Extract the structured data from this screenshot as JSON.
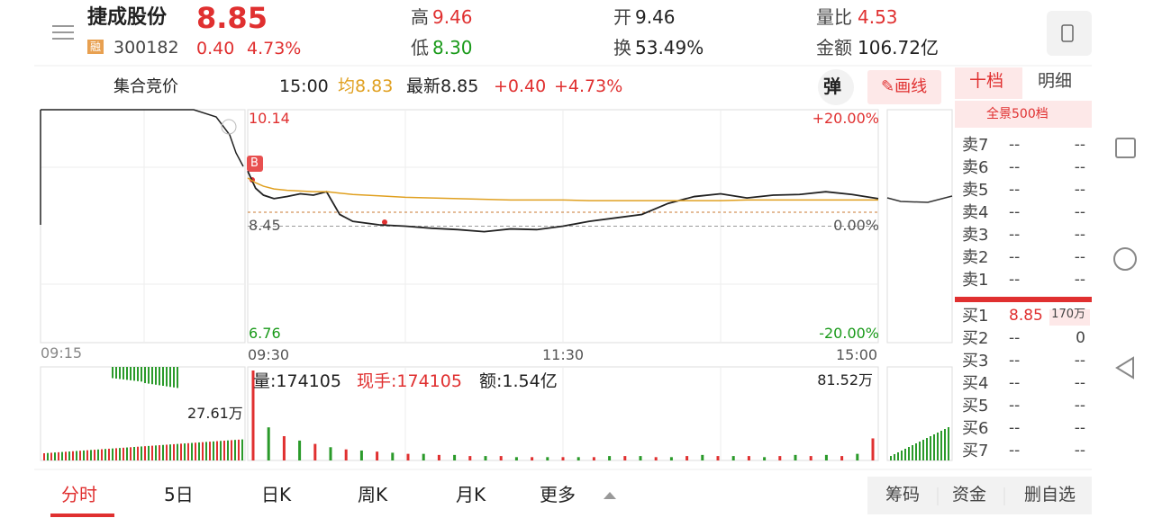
{
  "header": {
    "name": "捷成股份",
    "badge": "融",
    "code": "300182",
    "price": "8.85",
    "change": "0.40",
    "change_pct": "4.73%",
    "stats": [
      {
        "label": "高",
        "value": "9.46"
      },
      {
        "label": "低",
        "value": "8.30"
      },
      {
        "label": "开",
        "value": "9.46"
      },
      {
        "label": "换",
        "value": "53.49%"
      },
      {
        "label": "量比",
        "value": "4.53"
      },
      {
        "label": "金额",
        "value": "106.72亿"
      }
    ]
  },
  "infobar": {
    "auction": "集合竞价",
    "time": "15:00",
    "avg": "均8.83",
    "latest": "最新8.85",
    "change": "+0.40",
    "change_pct": "+4.73%",
    "popup": "弹",
    "draw": "画线"
  },
  "chart": {
    "type": "line",
    "marker": "B",
    "pre_time": "09:15",
    "x_labels": [
      {
        "value": 0,
        "label": "09:30"
      },
      {
        "value": 120,
        "label": "11:30"
      },
      {
        "value": 240,
        "label": "15:00"
      }
    ],
    "xlim": [
      0,
      240
    ],
    "ylim": [
      6.76,
      10.14
    ],
    "yticks": [
      10.14,
      8.45,
      6.76
    ],
    "pct_ticks": [
      "+20.00%",
      "0.00%",
      "-20.00%"
    ],
    "x": [
      0,
      3,
      6,
      10,
      15,
      20,
      25,
      30,
      35,
      40,
      50,
      60,
      70,
      80,
      90,
      100,
      110,
      120,
      130,
      140,
      150,
      160,
      170,
      180,
      190,
      200,
      210,
      220,
      230,
      240
    ],
    "series": [
      {
        "name": "价格",
        "color": "#222222",
        "values": [
          9.25,
          9.0,
          8.9,
          8.85,
          8.88,
          8.92,
          8.9,
          8.95,
          8.62,
          8.52,
          8.47,
          8.45,
          8.42,
          8.4,
          8.37,
          8.41,
          8.4,
          8.45,
          8.52,
          8.57,
          8.62,
          8.78,
          8.88,
          8.92,
          8.86,
          8.9,
          8.91,
          8.95,
          8.91,
          8.85
        ]
      },
      {
        "name": "均价",
        "color": "#e0a020",
        "values": [
          9.15,
          9.08,
          9.03,
          8.99,
          8.97,
          8.96,
          8.95,
          8.95,
          8.93,
          8.91,
          8.89,
          8.87,
          8.86,
          8.85,
          8.84,
          8.83,
          8.83,
          8.83,
          8.82,
          8.82,
          8.82,
          8.82,
          8.82,
          8.82,
          8.83,
          8.83,
          8.83,
          8.83,
          8.83,
          8.83
        ]
      }
    ],
    "volume": {
      "labels": [
        "量:174105",
        "现手:174105",
        "额:1.54亿"
      ],
      "pre_label": "27.61万",
      "ylim": [
        0,
        81.52
      ],
      "yticks": [
        {
          "value": 81.52,
          "label": "81.52万"
        }
      ],
      "x": [
        0,
        6,
        12,
        18,
        24,
        30,
        36,
        42,
        48,
        54,
        60,
        66,
        72,
        78,
        84,
        90,
        96,
        102,
        108,
        114,
        120,
        126,
        132,
        138,
        144,
        150,
        156,
        162,
        168,
        174,
        180,
        186,
        192,
        198,
        204,
        210,
        216,
        222,
        228,
        234,
        240
      ],
      "values": [
        81.52,
        30,
        22,
        18,
        15,
        12,
        10,
        9,
        8,
        7,
        6,
        6,
        5,
        5,
        4,
        4,
        4,
        3,
        3,
        3,
        3,
        3,
        3,
        4,
        4,
        4,
        3,
        3,
        4,
        5,
        4,
        4,
        4,
        3,
        4,
        5,
        4,
        5,
        4,
        6,
        20
      ]
    }
  },
  "order_book": {
    "tabs": [
      "十档",
      "明细"
    ],
    "depth": "全景500档",
    "asks": [
      {
        "label": "卖7",
        "price": "--",
        "volume": "--"
      },
      {
        "label": "卖6",
        "price": "--",
        "volume": "--"
      },
      {
        "label": "卖5",
        "price": "--",
        "volume": "--"
      },
      {
        "label": "卖4",
        "price": "--",
        "volume": "--"
      },
      {
        "label": "卖3",
        "price": "--",
        "volume": "--"
      },
      {
        "label": "卖2",
        "price": "--",
        "volume": "--"
      },
      {
        "label": "卖1",
        "price": "--",
        "volume": "--"
      }
    ],
    "bids": [
      {
        "label": "买1",
        "price": "8.85",
        "volume": "170万"
      },
      {
        "label": "买2",
        "price": "--",
        "volume": "0"
      },
      {
        "label": "买3",
        "price": "--",
        "volume": "--"
      },
      {
        "label": "买4",
        "price": "--",
        "volume": "--"
      },
      {
        "label": "买5",
        "price": "--",
        "volume": "--"
      },
      {
        "label": "买6",
        "price": "--",
        "volume": "--"
      },
      {
        "label": "买7",
        "price": "--",
        "volume": "--"
      }
    ]
  },
  "tabs": [
    "分时",
    "5日",
    "日K",
    "周K",
    "月K",
    "更多"
  ],
  "buttons": [
    "筹码",
    "资金",
    "删自选"
  ]
}
